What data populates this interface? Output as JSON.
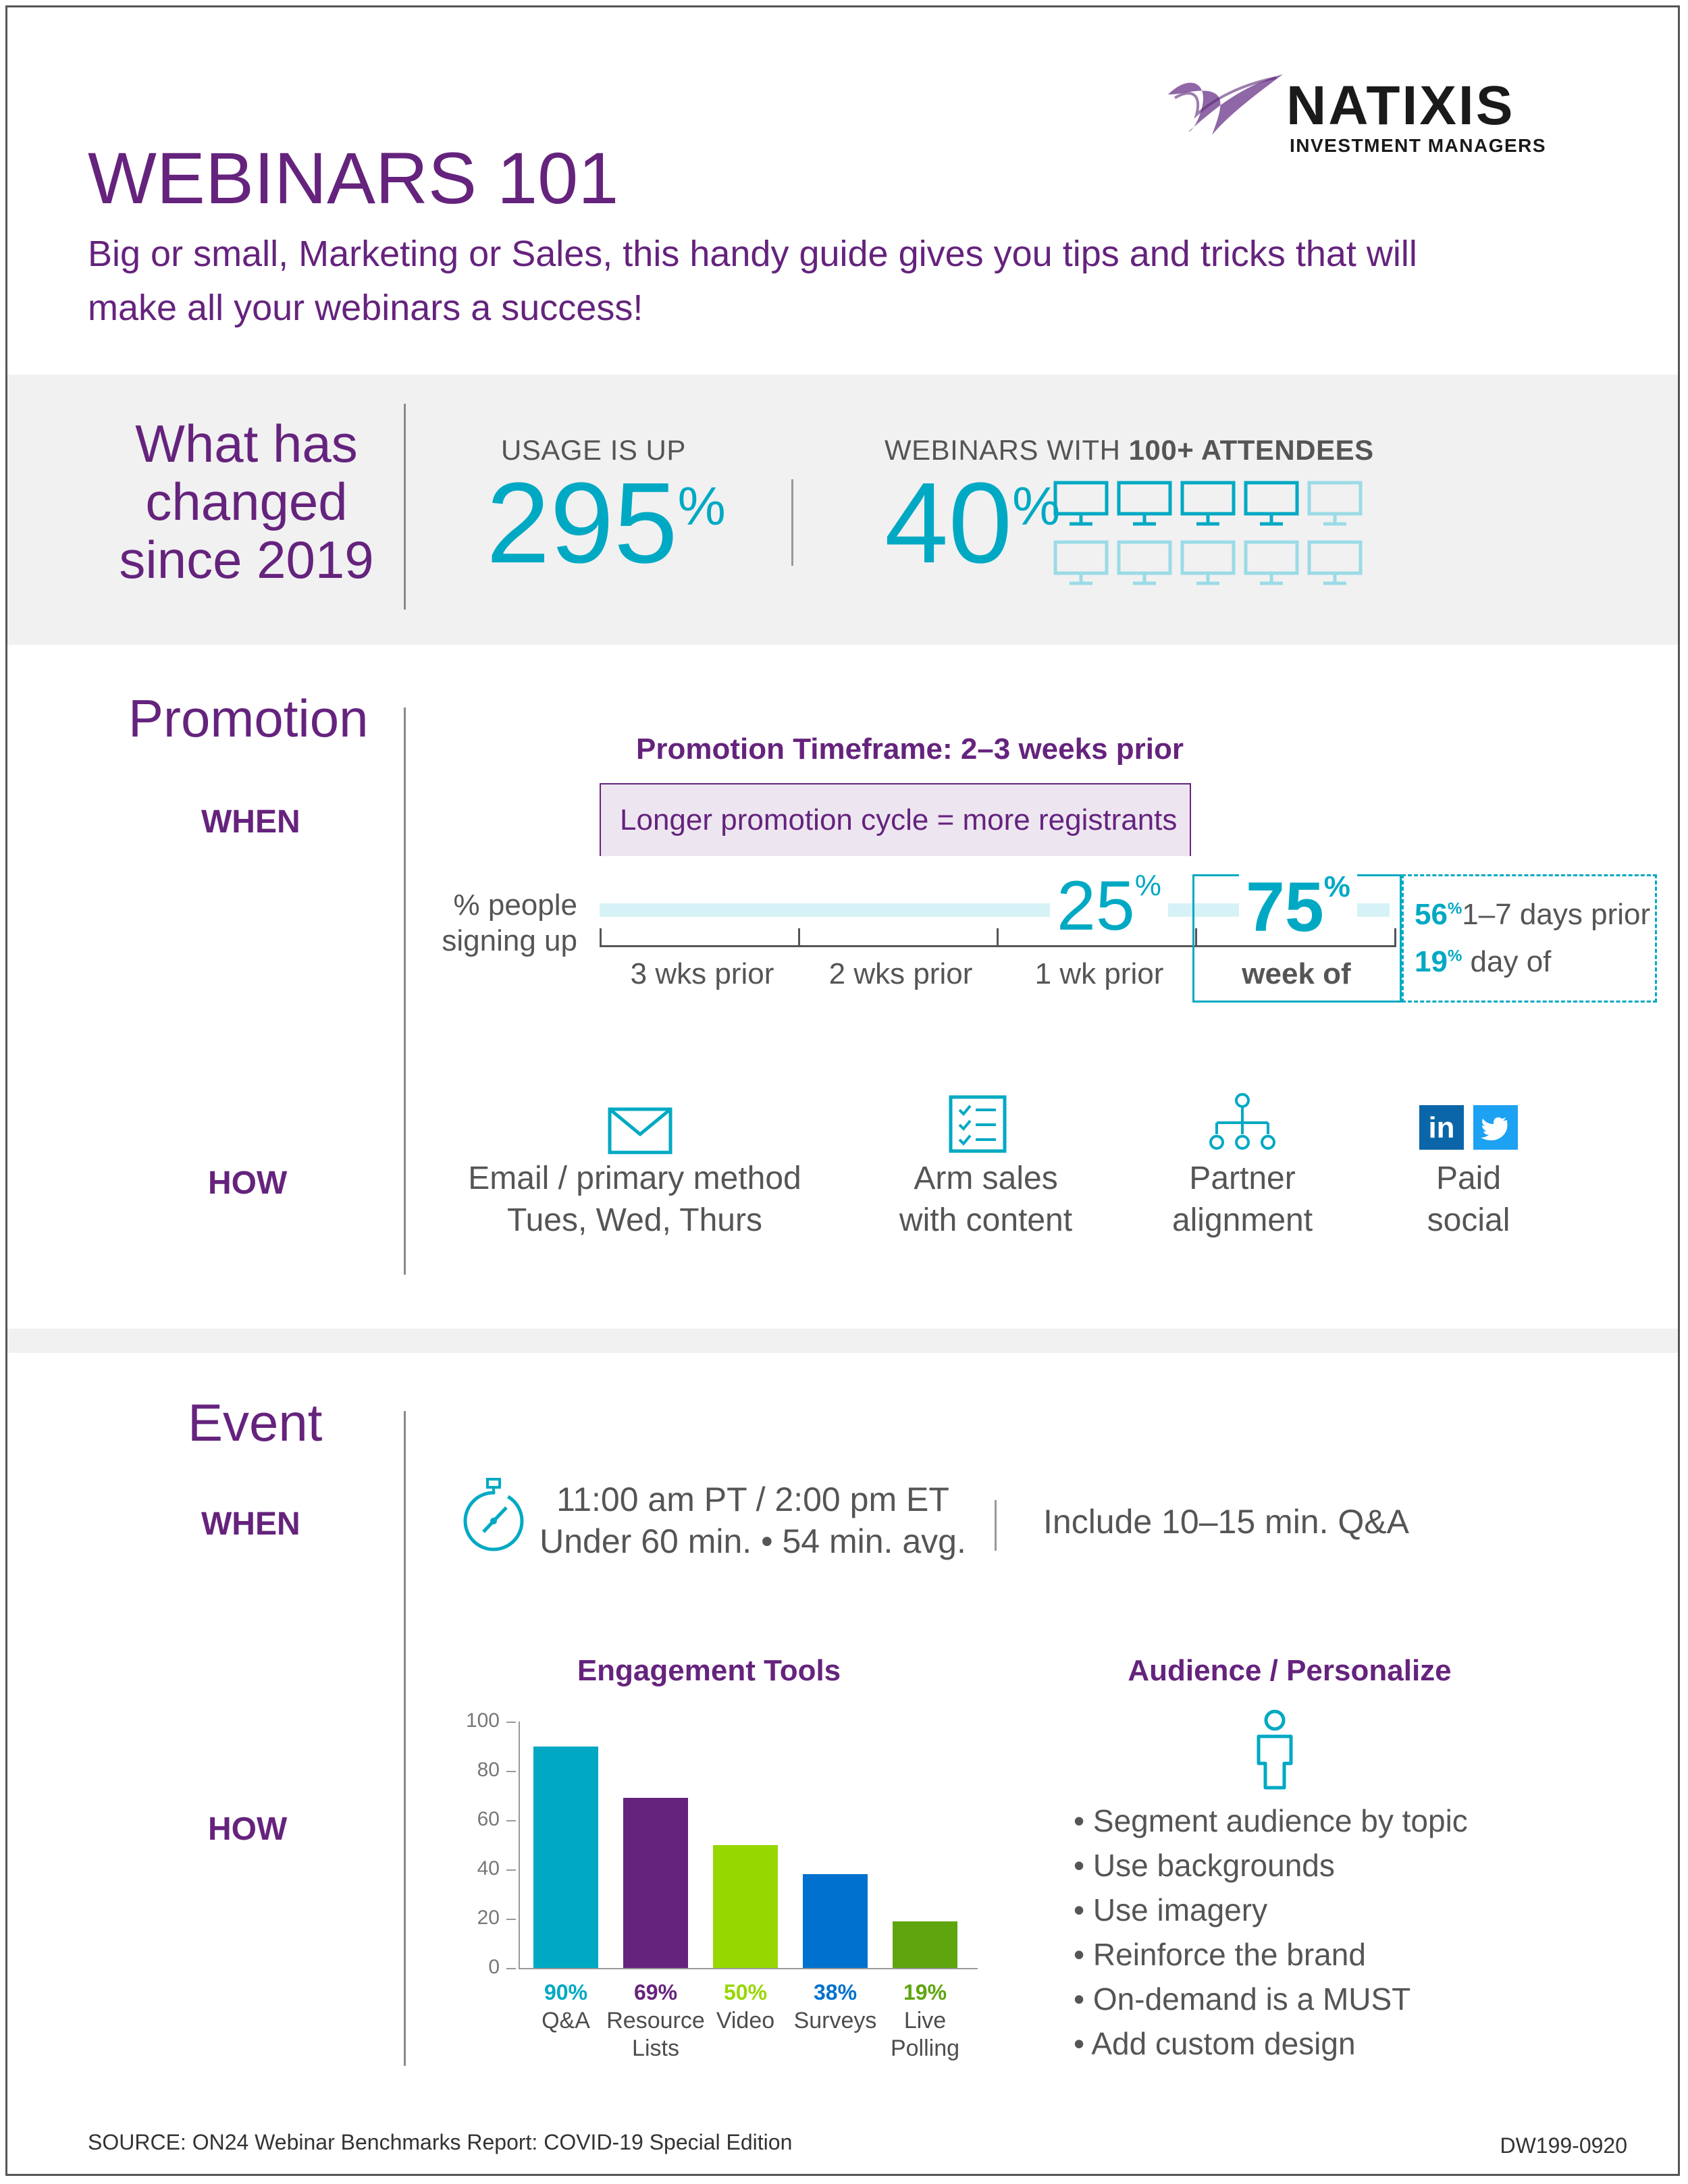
{
  "brand": {
    "name": "NATIXIS",
    "subtitle": "INVESTMENT MANAGERS"
  },
  "header": {
    "title": "WEBINARS 101",
    "tagline_1": "Big or small, Marketing or Sales, this handy guide gives you tips and tricks that will",
    "tagline_2": "make all your webinars a success!"
  },
  "changed": {
    "heading_1": "What has",
    "heading_2": "changed",
    "heading_3": "since 2019",
    "usage_caption": "USAGE IS UP",
    "usage_value": "295",
    "usage_unit": "%",
    "webinars_caption_a": "WEBINARS WITH ",
    "webinars_caption_b": "100+ ATTENDEES",
    "webinars_value": "40",
    "webinars_unit": "%",
    "monitor_share": 0.4
  },
  "promotion": {
    "heading": "Promotion",
    "when_label": "WHEN",
    "how_label": "HOW",
    "timeframe": "Promotion Timeframe: 2–3 weeks prior",
    "callout": "Longer promotion cycle = more registrants",
    "axis_caption_1": "% people",
    "axis_caption_2": "signing up",
    "periods": [
      "3 wks prior",
      "2 wks prior",
      "1 wk prior",
      "week of"
    ],
    "pct_1wk": "25",
    "pct_weekof": "75",
    "pct_unit": "%",
    "detail_1_value": "56",
    "detail_1_text": "1–7 days prior",
    "detail_2_value": "19",
    "detail_2_text": "day of",
    "how_items": [
      {
        "line1": "Email / primary method",
        "line2": "Tues, Wed, Thurs",
        "icon": "envelope-icon"
      },
      {
        "line1": "Arm sales",
        "line2": "with content",
        "icon": "checklist-icon"
      },
      {
        "line1": "Partner",
        "line2": "alignment",
        "icon": "org-chart-icon"
      },
      {
        "line1": "Paid",
        "line2": "social",
        "icon": "social-icons"
      }
    ]
  },
  "event": {
    "heading": "Event",
    "when_label": "WHEN",
    "how_label": "HOW",
    "time_line_1": "11:00 am PT / 2:00 pm ET",
    "time_line_2": "Under 60 min. • 54 min. avg.",
    "qa_note": "Include 10–15 min. Q&A",
    "audience_title": "Audience / Personalize",
    "audience_bullets": [
      "Segment audience by topic",
      "Use backgrounds",
      "Use imagery",
      "Reinforce the brand",
      "On-demand is a MUST",
      "Add custom design"
    ]
  },
  "chart_data": {
    "type": "bar",
    "title": "Engagement Tools",
    "categories": [
      "Q&A",
      "Resource Lists",
      "Video",
      "Surveys",
      "Live Polling"
    ],
    "category_lines": [
      [
        "Q&A"
      ],
      [
        "Resource",
        "Lists"
      ],
      [
        "Video"
      ],
      [
        "Surveys"
      ],
      [
        "Live",
        "Polling"
      ]
    ],
    "values": [
      90,
      69,
      50,
      38,
      19
    ],
    "value_labels": [
      "90%",
      "69%",
      "50%",
      "38%",
      "19%"
    ],
    "colors": [
      "#00a9c3",
      "#65237d",
      "#97d700",
      "#0071ce",
      "#5ea50e"
    ],
    "label_colors": [
      "#00a9c3",
      "#65237d",
      "#97d700",
      "#0071ce",
      "#5ea50e"
    ],
    "yticks": [
      0,
      20,
      40,
      60,
      80,
      100
    ],
    "ylim": [
      0,
      100
    ]
  },
  "footer": {
    "source": "SOURCE: ON24 Webinar Benchmarks Report: COVID-19 Special Edition",
    "code": "DW199-0920"
  }
}
